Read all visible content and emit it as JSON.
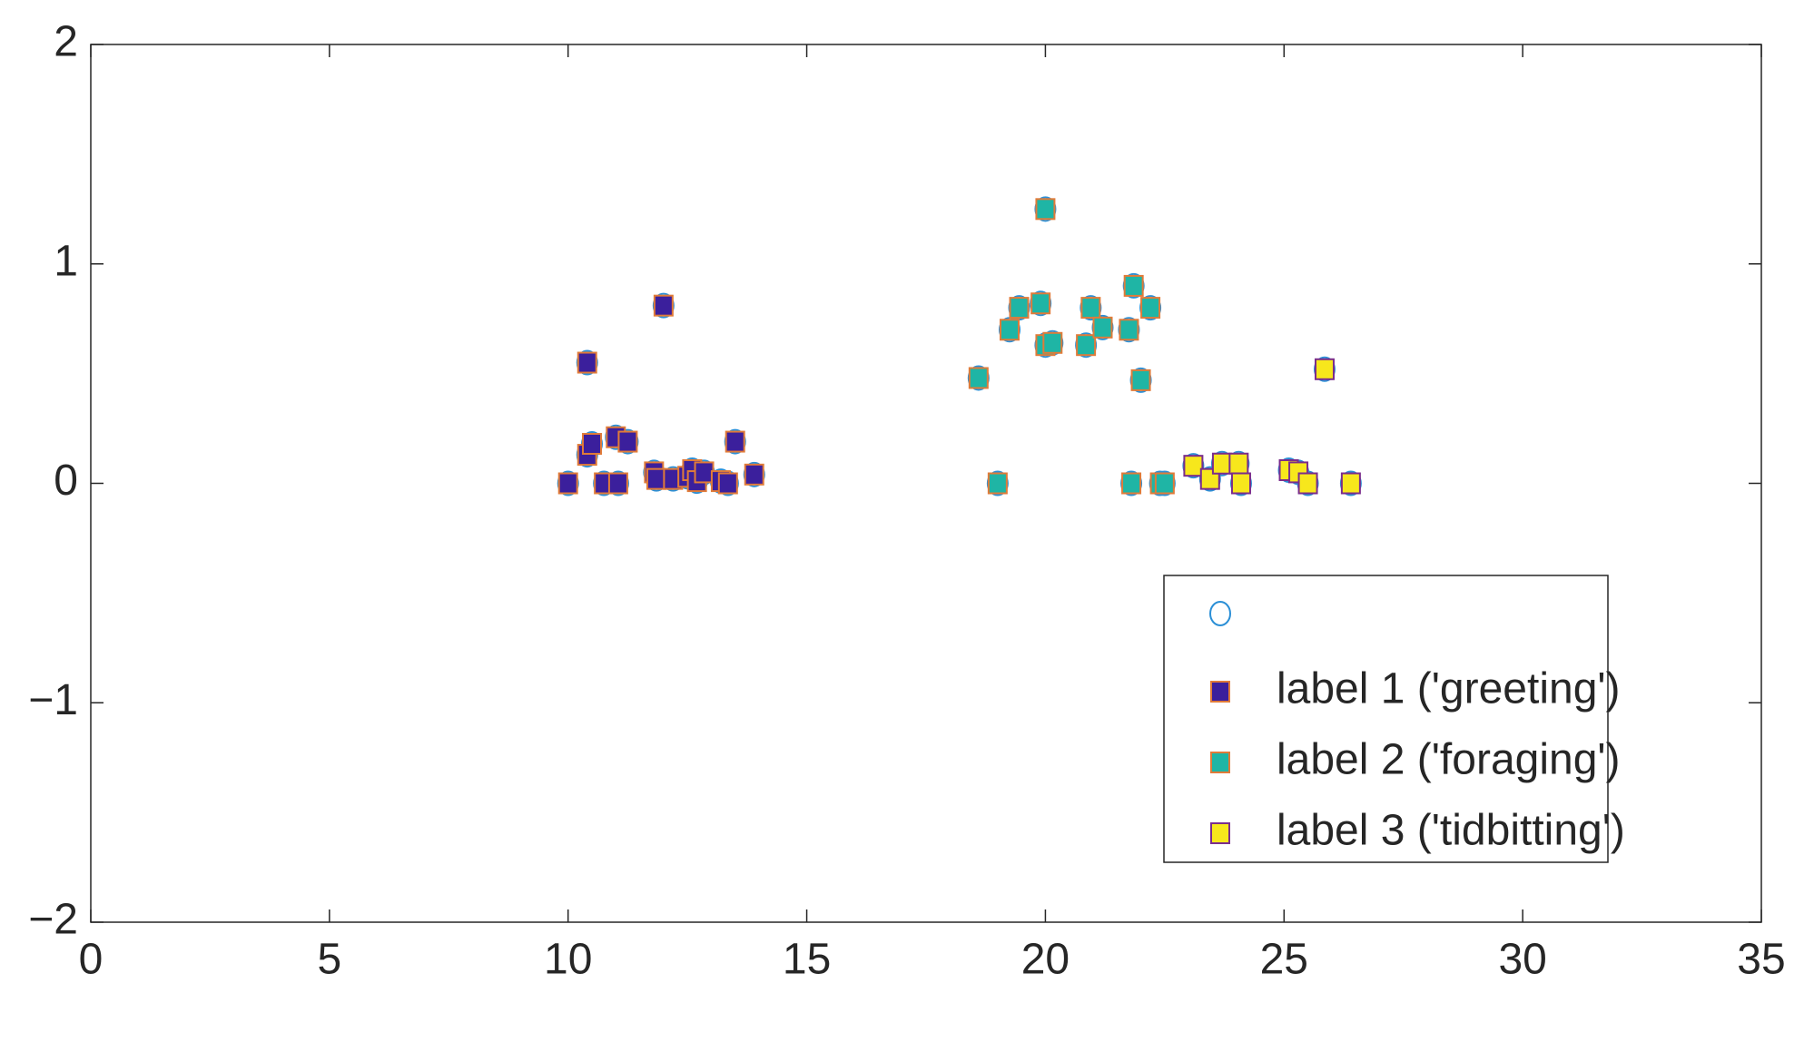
{
  "chart_data": {
    "type": "scatter",
    "xlim": [
      0,
      35
    ],
    "ylim": [
      -2,
      2
    ],
    "xticks": [
      0,
      5,
      10,
      15,
      20,
      25,
      30,
      35
    ],
    "yticks": [
      {
        "value": -2,
        "label": "−2"
      },
      {
        "value": -1,
        "label": "−1"
      },
      0,
      1,
      2
    ],
    "legend": "lower right",
    "series": [
      {
        "marker": "circle",
        "color": "#2b8fd6",
        "x": [
          10,
          10.4,
          10.4,
          10.5,
          10.75,
          11,
          11.05,
          11.25,
          11.8,
          11.85,
          12,
          12.2,
          12.5,
          12.6,
          12.7,
          12.85,
          13.2,
          13.35,
          13.5,
          13.9,
          18.6,
          19,
          19.25,
          19.45,
          19.9,
          20,
          20,
          20.15,
          20.85,
          20.95,
          21.2,
          21.75,
          21.85,
          21.8,
          22,
          22.2,
          22.4,
          22.5,
          23.1,
          23.45,
          23.7,
          24.05,
          24.1,
          25.1,
          25.3,
          25.5,
          25.85,
          26.4
        ],
        "y": [
          0,
          0.55,
          0.13,
          0.18,
          0,
          0.21,
          0,
          0.19,
          0.05,
          0.02,
          0.81,
          0.02,
          0.03,
          0.06,
          0.01,
          0.05,
          0.01,
          0,
          0.19,
          0.04,
          0.48,
          0,
          0.7,
          0.8,
          0.82,
          1.25,
          0.63,
          0.64,
          0.63,
          0.8,
          0.71,
          0.7,
          0.9,
          0,
          0.47,
          0.8,
          0,
          0,
          0.08,
          0.02,
          0.09,
          0.09,
          0,
          0.06,
          0.05,
          0,
          0.52,
          0
        ]
      },
      {
        "name": "label 1 ('greeting')",
        "marker": "square",
        "color": "#3b1f9c",
        "edge": "#e07b39",
        "x": [
          10,
          10.4,
          10.4,
          10.5,
          10.75,
          11,
          11.05,
          11.25,
          11.8,
          11.85,
          12,
          12.2,
          12.5,
          12.6,
          12.7,
          12.85,
          13.2,
          13.35,
          13.5,
          13.9
        ],
        "y": [
          0,
          0.55,
          0.13,
          0.18,
          0,
          0.21,
          0,
          0.19,
          0.05,
          0.02,
          0.81,
          0.02,
          0.03,
          0.06,
          0.01,
          0.05,
          0.01,
          0,
          0.19,
          0.04
        ]
      },
      {
        "name": "label 2 ('foraging')",
        "marker": "square",
        "color": "#1fb5a5",
        "edge": "#e07b39",
        "x": [
          18.6,
          19,
          19.25,
          19.45,
          19.9,
          20,
          20,
          20.15,
          20.85,
          20.95,
          21.2,
          21.75,
          21.85,
          21.8,
          22,
          22.2,
          22.4,
          22.5
        ],
        "y": [
          0.48,
          0,
          0.7,
          0.8,
          0.82,
          1.25,
          0.63,
          0.64,
          0.63,
          0.8,
          0.71,
          0.7,
          0.9,
          0,
          0.47,
          0.8,
          0,
          0
        ]
      },
      {
        "name": "label 3 ('tidbitting')",
        "marker": "square",
        "color": "#f7e71c",
        "edge": "#7a2d8c",
        "x": [
          23.1,
          23.45,
          23.7,
          24.05,
          24.1,
          25.1,
          25.3,
          25.5,
          25.85,
          26.4
        ],
        "y": [
          0.08,
          0.02,
          0.09,
          0.09,
          0,
          0.06,
          0.05,
          0,
          0.52,
          0
        ]
      }
    ]
  }
}
